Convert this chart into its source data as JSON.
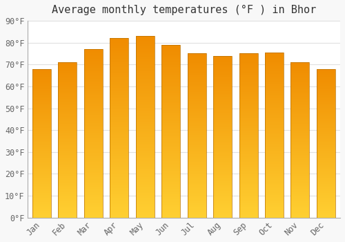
{
  "title": "Average monthly temperatures (°F ) in Bhor",
  "months": [
    "Jan",
    "Feb",
    "Mar",
    "Apr",
    "May",
    "Jun",
    "Jul",
    "Aug",
    "Sep",
    "Oct",
    "Nov",
    "Dec"
  ],
  "values": [
    68,
    71,
    77,
    82,
    83,
    79,
    75,
    74,
    75,
    75.5,
    71,
    68
  ],
  "bar_color_top": "#F5A800",
  "bar_color_bottom": "#FFD050",
  "bar_edge_color": "#C87000",
  "background_color": "#f8f8f8",
  "plot_bg_color": "#ffffff",
  "grid_color": "#e0e0e0",
  "ylim": [
    0,
    90
  ],
  "yticks": [
    0,
    10,
    20,
    30,
    40,
    50,
    60,
    70,
    80,
    90
  ],
  "title_fontsize": 11,
  "tick_fontsize": 8.5,
  "tick_color": "#666666",
  "bar_width": 0.72
}
